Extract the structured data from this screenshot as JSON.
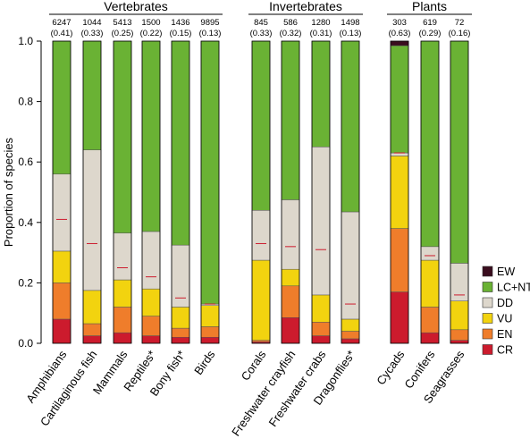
{
  "chart_data": {
    "type": "bar",
    "stacked": true,
    "ylabel": "Proportion of species",
    "ylim": [
      0,
      1
    ],
    "yticks": [
      "0.0",
      "0.2",
      "0.4",
      "0.6",
      "0.8",
      "1.0"
    ],
    "groups": [
      {
        "label": "Vertebrates",
        "range": [
          0,
          5
        ]
      },
      {
        "label": "Invertebrates",
        "range": [
          6,
          9
        ]
      },
      {
        "label": "Plants",
        "range": [
          10,
          12
        ]
      }
    ],
    "legend_position": "bottom-right",
    "categories_order": [
      "CR",
      "EN",
      "VU",
      "DD",
      "LC+NT",
      "EW"
    ],
    "legend": [
      {
        "key": "EW",
        "label": "EW",
        "color": "#3a0d1e"
      },
      {
        "key": "LC+NT",
        "label": "LC+NT",
        "color": "#6ab234"
      },
      {
        "key": "DD",
        "label": "DD",
        "color": "#ddd7cc"
      },
      {
        "key": "VU",
        "label": "VU",
        "color": "#f2d30f"
      },
      {
        "key": "EN",
        "label": "EN",
        "color": "#ef7d2b"
      },
      {
        "key": "CR",
        "label": "CR",
        "color": "#cc1b2d"
      }
    ],
    "bars": [
      {
        "name": "Amphibians",
        "count": "6247",
        "prop": "(0.41)",
        "threatened": 0.41,
        "CR": 0.08,
        "EN": 0.12,
        "VU": 0.105,
        "DD": 0.255,
        "LC+NT": 0.44,
        "EW": 0
      },
      {
        "name": "Cartilaginous fish",
        "count": "1044",
        "prop": "(0.33)",
        "threatened": 0.33,
        "CR": 0.025,
        "EN": 0.04,
        "VU": 0.11,
        "DD": 0.465,
        "LC+NT": 0.36,
        "EW": 0
      },
      {
        "name": "Mammals",
        "count": "5413",
        "prop": "(0.25)",
        "threatened": 0.25,
        "CR": 0.035,
        "EN": 0.085,
        "VU": 0.09,
        "DD": 0.155,
        "LC+NT": 0.635,
        "EW": 0
      },
      {
        "name": "Reptiles*",
        "count": "1500",
        "prop": "(0.22)",
        "threatened": 0.22,
        "CR": 0.025,
        "EN": 0.065,
        "VU": 0.09,
        "DD": 0.19,
        "LC+NT": 0.63,
        "EW": 0
      },
      {
        "name": "Bony fish*",
        "count": "1436",
        "prop": "(0.15)",
        "threatened": 0.15,
        "CR": 0.02,
        "EN": 0.03,
        "VU": 0.07,
        "DD": 0.205,
        "LC+NT": 0.675,
        "EW": 0
      },
      {
        "name": "Birds",
        "count": "9895",
        "prop": "(0.13)",
        "threatened": 0.13,
        "CR": 0.02,
        "EN": 0.035,
        "VU": 0.07,
        "DD": 0.005,
        "LC+NT": 0.87,
        "EW": 0
      },
      {
        "name": "Corals",
        "count": "845",
        "prop": "(0.33)",
        "threatened": 0.33,
        "CR": 0.005,
        "EN": 0.005,
        "VU": 0.265,
        "DD": 0.165,
        "LC+NT": 0.56,
        "EW": 0
      },
      {
        "name": "Freshwater crayfish",
        "count": "586",
        "prop": "(0.32)",
        "threatened": 0.32,
        "CR": 0.085,
        "EN": 0.105,
        "VU": 0.055,
        "DD": 0.23,
        "LC+NT": 0.525,
        "EW": 0
      },
      {
        "name": "Freshwater crabs",
        "count": "1280",
        "prop": "(0.31)",
        "threatened": 0.31,
        "CR": 0.025,
        "EN": 0.045,
        "VU": 0.09,
        "DD": 0.49,
        "LC+NT": 0.35,
        "EW": 0
      },
      {
        "name": "Dragonflies*",
        "count": "1498",
        "prop": "(0.13)",
        "threatened": 0.13,
        "CR": 0.015,
        "EN": 0.025,
        "VU": 0.04,
        "DD": 0.355,
        "LC+NT": 0.565,
        "EW": 0
      },
      {
        "name": "Cycads",
        "count": "303",
        "prop": "(0.63)",
        "threatened": 0.63,
        "CR": 0.17,
        "EN": 0.21,
        "VU": 0.24,
        "DD": 0.01,
        "LC+NT": 0.355,
        "EW": 0.015
      },
      {
        "name": "Conifers",
        "count": "619",
        "prop": "(0.29)",
        "threatened": 0.29,
        "CR": 0.035,
        "EN": 0.085,
        "VU": 0.155,
        "DD": 0.045,
        "LC+NT": 0.68,
        "EW": 0
      },
      {
        "name": "Seagrasses",
        "count": "72",
        "prop": "(0.16)",
        "threatened": 0.16,
        "CR": 0.01,
        "EN": 0.035,
        "VU": 0.095,
        "DD": 0.125,
        "LC+NT": 0.735,
        "EW": 0
      }
    ]
  }
}
